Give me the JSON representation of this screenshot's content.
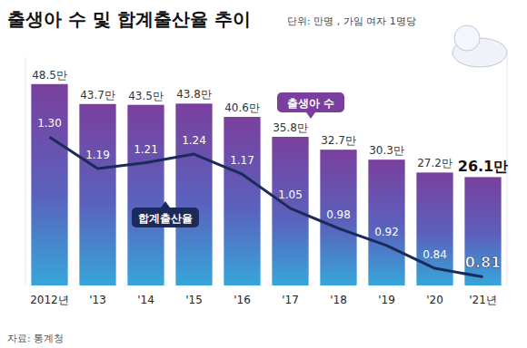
{
  "chart_data": {
    "type": "bar",
    "title": "출생아 수 및 합계출산율 추이",
    "subtitle": "단위: 만명 , 가임 여자 1명당",
    "source": "자료: 통계청",
    "categories": [
      "2012년",
      "'13",
      "'14",
      "'15",
      "'16",
      "'17",
      "'18",
      "'19",
      "'20",
      "'21년"
    ],
    "series": [
      {
        "name": "출생아 수",
        "type": "bar",
        "color": "#7a3f9e",
        "values": [
          48.5,
          43.7,
          43.5,
          43.8,
          40.6,
          35.8,
          32.7,
          30.3,
          27.2,
          26.1
        ],
        "value_labels": [
          "48.5만",
          "43.7만",
          "43.5만",
          "43.8만",
          "40.6만",
          "35.8만",
          "32.7만",
          "30.3만",
          "27.2만",
          "26.1만"
        ]
      },
      {
        "name": "합계출산율",
        "type": "line",
        "axis": "y2",
        "color": "#1c2a5a",
        "values": [
          1.3,
          1.19,
          1.21,
          1.24,
          1.17,
          1.05,
          0.98,
          0.92,
          0.84,
          0.81
        ],
        "value_labels": [
          "1.30",
          "1.19",
          "1.21",
          "1.24",
          "1.17",
          "1.05",
          "0.98",
          "0.92",
          "0.84",
          "0.81"
        ]
      }
    ],
    "ylim": [
      0,
      55
    ],
    "y2lim": [
      0.78,
      1.58
    ],
    "data_labels": true,
    "tick_labels": "x",
    "grid": false
  }
}
